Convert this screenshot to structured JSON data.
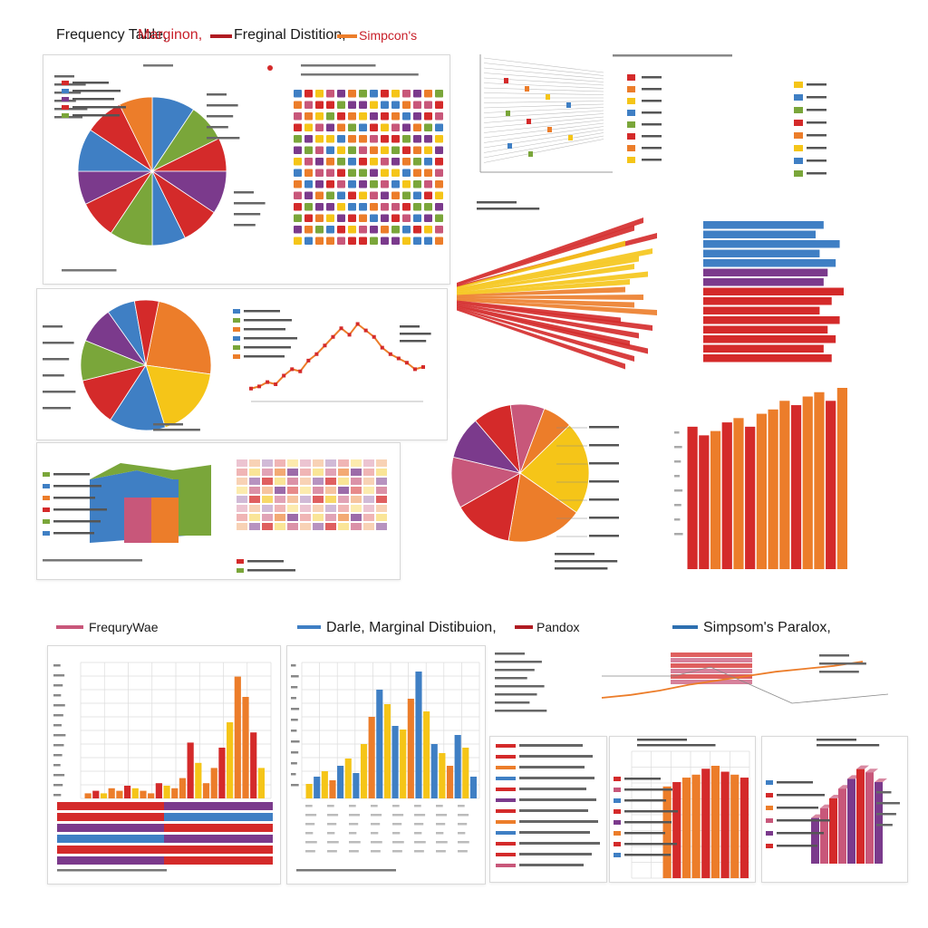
{
  "header": {
    "title_1": "Frequency Table,",
    "title_2": "Marginon,",
    "title_3": "Freginal Distition,",
    "title_4": "Simpcon's"
  },
  "section2": {
    "title_1": "FrequryWae",
    "title_2": "Darle, Marginal Distibuion,",
    "title_3": "Pandox",
    "title_4": "Simpsom's Paralox,"
  },
  "colors": {
    "red": "#d42a2a",
    "orange": "#ec7d2a",
    "yellow": "#f5c518",
    "blue": "#3f7fc4",
    "green": "#7aa63a",
    "purple": "#7b3a8c",
    "pink": "#c8577a",
    "grey": "#cfcfcf"
  },
  "chart_data": [
    {
      "type": "pie",
      "values": [
        9,
        8,
        7,
        9,
        8,
        7,
        9,
        8,
        7,
        9,
        8,
        7
      ]
    },
    {
      "type": "heatmap",
      "rows": 14,
      "cols": 14
    },
    {
      "type": "pie",
      "values": [
        24,
        18,
        14,
        12,
        10,
        9,
        7,
        6
      ]
    },
    {
      "type": "line",
      "values": [
        6,
        7,
        9,
        8,
        12,
        15,
        14,
        19,
        22,
        26,
        30,
        34,
        31,
        36,
        33,
        30,
        25,
        22,
        20,
        18,
        15,
        16
      ]
    },
    {
      "type": "bar",
      "values": [
        42,
        40,
        45,
        38,
        44,
        41,
        40,
        43,
        39,
        38,
        42,
        40,
        45,
        37,
        44,
        41,
        39,
        43,
        40,
        38
      ]
    },
    {
      "type": "bar",
      "values": [
        30,
        28,
        34,
        29,
        33,
        31,
        30,
        35,
        32,
        29,
        34,
        31,
        33,
        30,
        32
      ]
    },
    {
      "type": "pie",
      "values": [
        22,
        18,
        14,
        12,
        10,
        9,
        8,
        7
      ]
    },
    {
      "type": "bar",
      "values": [
        165,
        155,
        160,
        170,
        175,
        165,
        180,
        185,
        195,
        190,
        200,
        205,
        195,
        210
      ]
    },
    {
      "type": "bar",
      "values": [
        2,
        3,
        2,
        4,
        3,
        5,
        4,
        3,
        2,
        6,
        5,
        4,
        8,
        22,
        14,
        6,
        12,
        20,
        30,
        48,
        40,
        26,
        12
      ]
    },
    {
      "type": "bar",
      "values": [
        8,
        12,
        15,
        10,
        18,
        22,
        14,
        30,
        45,
        60,
        52,
        40,
        38,
        55,
        70,
        48,
        30,
        25,
        18,
        35,
        28,
        12
      ]
    },
    {
      "type": "line",
      "values": [
        20,
        24,
        30,
        38,
        44,
        50,
        56,
        60,
        64,
        70
      ]
    },
    {
      "type": "bar",
      "values": [
        62,
        65,
        68,
        70,
        74,
        76,
        72,
        70,
        68
      ]
    },
    {
      "type": "bar",
      "values": [
        28,
        34,
        40,
        46,
        52,
        58,
        56,
        50
      ]
    }
  ]
}
